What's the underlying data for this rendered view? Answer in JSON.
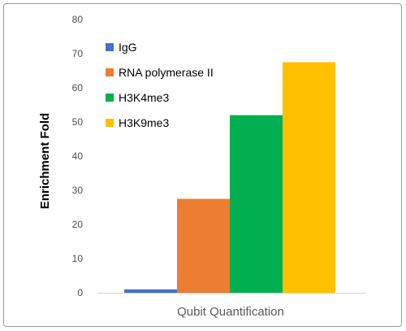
{
  "chart_data": {
    "type": "bar",
    "title": "",
    "xlabel": "Qubit Quantification",
    "ylabel": "Enrichment Fold",
    "ylim": [
      0,
      80
    ],
    "yticks": [
      0,
      10,
      20,
      30,
      40,
      50,
      60,
      70,
      80
    ],
    "grid": false,
    "legend": "top-left inside",
    "series": [
      {
        "name": "IgG",
        "value": 1,
        "color": "#4472C4"
      },
      {
        "name": "RNA polymerase II",
        "value": 27.5,
        "color": "#ED7D31"
      },
      {
        "name": "H3K4me3",
        "value": 52,
        "color": "#00B050"
      },
      {
        "name": "H3K9me3",
        "value": 67.5,
        "color": "#FFC000"
      }
    ]
  }
}
